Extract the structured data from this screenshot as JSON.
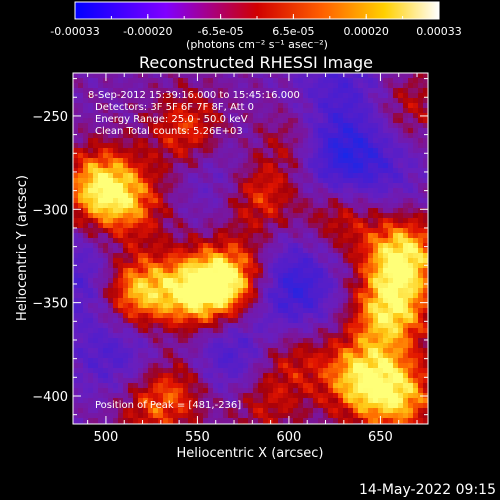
{
  "chart_data": {
    "type": "heatmap",
    "title": "Reconstructed RHESSI Image",
    "xlabel": "Heliocentric X (arcsec)",
    "ylabel": "Heliocentric Y (arcsec)",
    "xlim": [
      482,
      676
    ],
    "ylim": [
      -415,
      -227
    ],
    "x_ticks": [
      500,
      550,
      600,
      650
    ],
    "y_ticks": [
      -250,
      -300,
      -350,
      -400
    ],
    "x_minor_step": 10,
    "y_minor_step": 10,
    "annotations": [
      "8-Sep-2012 15:39:16.000 to 15:45:16.000",
      "Detectors: 3F 5F 6F 7F 8F, Att 0",
      "Energy Range: 25.0 - 50.0 keV",
      "Clean    Total counts: 5.26E+03"
    ],
    "peak_label": "Position of Peak = [481,-236]",
    "colorbar": {
      "ticks": [
        "-0.00033",
        "-0.00020",
        "-6.5e-05",
        "6.5e-05",
        "0.00020",
        "0.00033"
      ],
      "unit_label": "(photons cm⁻² s⁻¹ asec⁻²)",
      "range": [
        -0.00033,
        0.00033
      ],
      "colors": [
        "#0000ff",
        "#8000ff",
        "#ff0000",
        "#ff8000",
        "#ffff00",
        "#ffffff"
      ]
    },
    "sources": [
      {
        "x": 497,
        "y": -288,
        "intensity": 0.9
      },
      {
        "x": 514,
        "y": -298,
        "intensity": 0.5
      },
      {
        "x": 515,
        "y": -345,
        "intensity": 1.0
      },
      {
        "x": 550,
        "y": -344,
        "intensity": 1.0
      },
      {
        "x": 572,
        "y": -338,
        "intensity": 0.9
      },
      {
        "x": 545,
        "y": -258,
        "intensity": 0.6
      },
      {
        "x": 583,
        "y": -292,
        "intensity": 0.7
      },
      {
        "x": 605,
        "y": -265,
        "intensity": 0.65
      },
      {
        "x": 628,
        "y": -302,
        "intensity": 0.55
      },
      {
        "x": 662,
        "y": -325,
        "intensity": 1.0
      },
      {
        "x": 655,
        "y": -355,
        "intensity": 0.9
      },
      {
        "x": 638,
        "y": -390,
        "intensity": 0.8
      },
      {
        "x": 660,
        "y": -400,
        "intensity": 0.8
      },
      {
        "x": 540,
        "y": -395,
        "intensity": 0.5
      },
      {
        "x": 522,
        "y": -405,
        "intensity": 0.45
      },
      {
        "x": 585,
        "y": -403,
        "intensity": 0.45
      },
      {
        "x": 600,
        "y": -378,
        "intensity": 0.45
      },
      {
        "x": 665,
        "y": -245,
        "intensity": 0.4
      }
    ],
    "negative_regions": [
      {
        "x": 620,
        "y": -270,
        "intensity": 0.8
      },
      {
        "x": 600,
        "y": -342,
        "intensity": 0.8
      },
      {
        "x": 568,
        "y": -380,
        "intensity": 0.6
      },
      {
        "x": 508,
        "y": -378,
        "intensity": 0.5
      },
      {
        "x": 490,
        "y": -338,
        "intensity": 0.5
      },
      {
        "x": 565,
        "y": -283,
        "intensity": 0.4
      },
      {
        "x": 630,
        "y": -230,
        "intensity": 0.4
      },
      {
        "x": 645,
        "y": -278,
        "intensity": 0.45
      }
    ]
  },
  "footer": {
    "timestamp": "14-May-2022 09:15"
  }
}
